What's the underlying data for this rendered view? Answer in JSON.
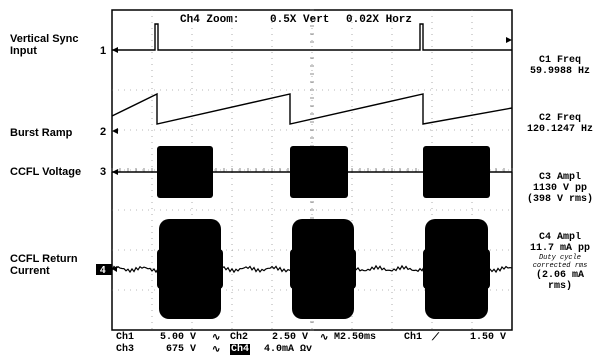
{
  "header": {
    "zoom_channel": "Ch4 Zoom:",
    "zoom_vert": "0.5X Vert",
    "zoom_horz": "0.02X Horz"
  },
  "channels": [
    {
      "label": "Vertical Sync\nInput",
      "num": "1"
    },
    {
      "label": "Burst Ramp",
      "num": "2"
    },
    {
      "label": "CCFL Voltage",
      "num": "3"
    },
    {
      "label": "CCFL Return\nCurrent",
      "num": "4"
    }
  ],
  "measurements": {
    "c1_title": "C1 Freq",
    "c1_value": "59.9988 Hz",
    "c2_title": "C2 Freq",
    "c2_value": "120.1247 Hz",
    "c3_title": "C3 Ampl",
    "c3_value1": "1130 V pp",
    "c3_value2": "(398 V rms)",
    "c4_title": "C4 Ampl",
    "c4_value1": "11.7 mA pp",
    "c4_note1": "Duty cycle",
    "c4_note2": "corrected rms",
    "c4_value2": "(2.06 mA rms)"
  },
  "footer": {
    "ch1": "Ch1",
    "ch1_scale": "5.00 V",
    "ch2": "Ch2",
    "ch2_scale": "2.50 V",
    "timebase": "M2.50ms",
    "trigger_src": "Ch1",
    "trigger_level": "1.50 V",
    "ch3": "Ch3",
    "ch3_scale": "675 V",
    "ch4": "Ch4",
    "ch4_scale": "4.0mA Ωv"
  },
  "colors": {
    "trace": "#000000",
    "grid": "#666666",
    "background": "#ffffff"
  }
}
